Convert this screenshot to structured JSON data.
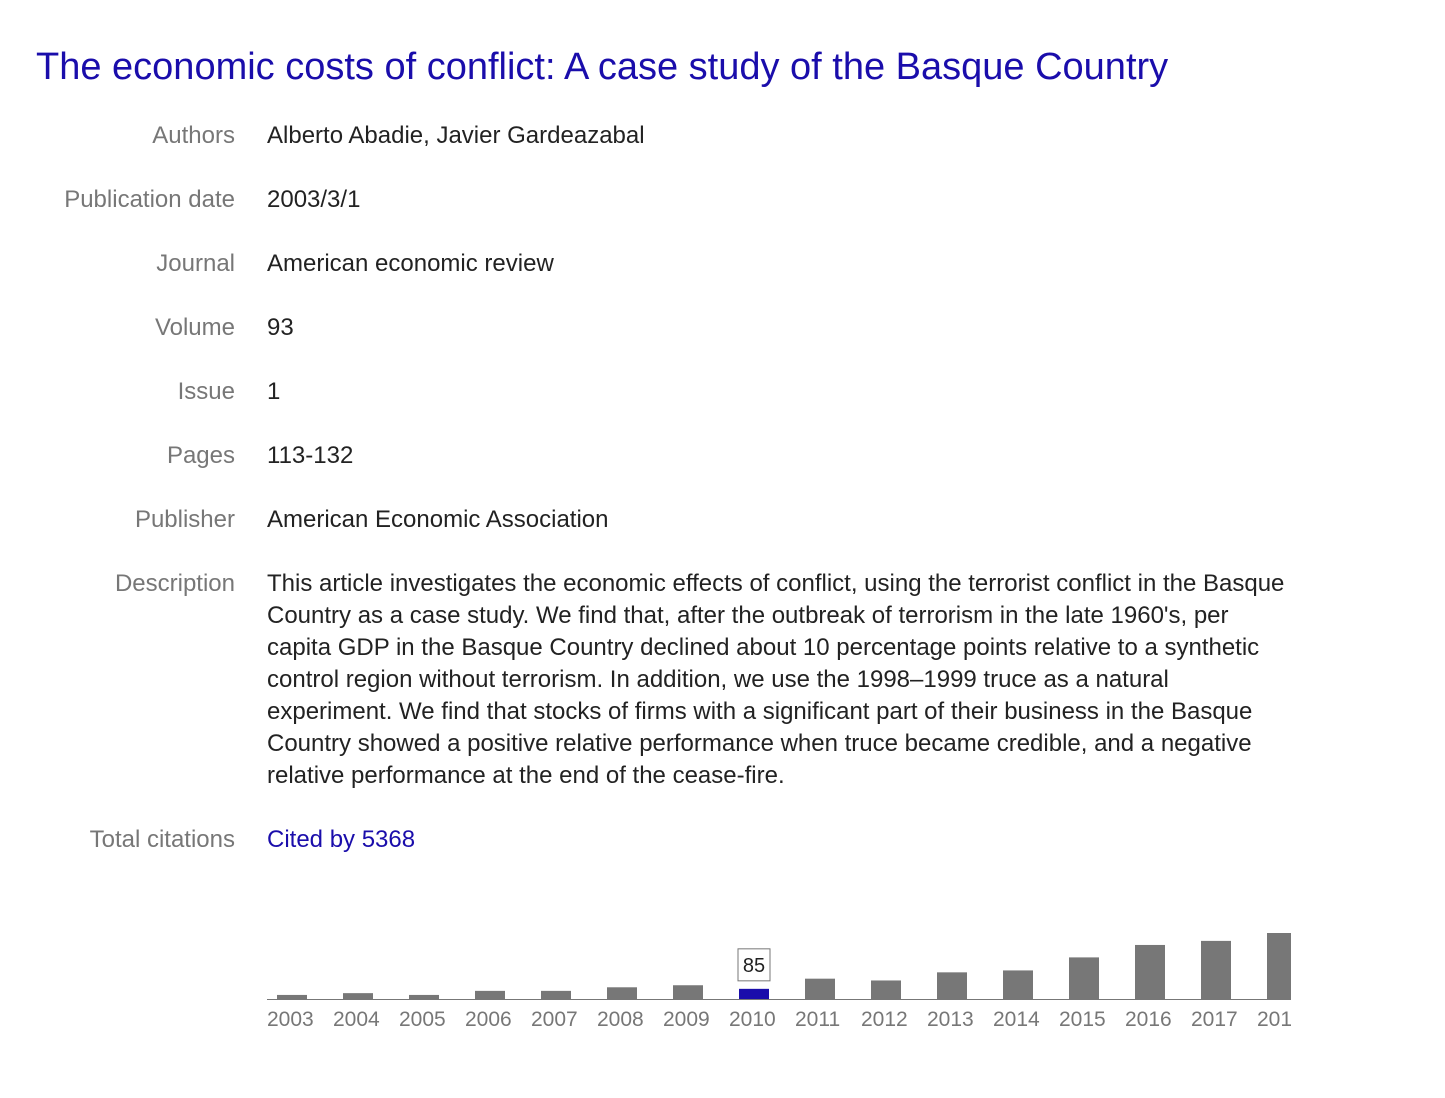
{
  "title": "The economic costs of conflict: A case study of the Basque Country",
  "fields": {
    "authors": {
      "label": "Authors",
      "value": "Alberto Abadie, Javier Gardeazabal"
    },
    "publication_date": {
      "label": "Publication date",
      "value": "2003/3/1"
    },
    "journal": {
      "label": "Journal",
      "value": "American economic review"
    },
    "volume": {
      "label": "Volume",
      "value": "93"
    },
    "issue": {
      "label": "Issue",
      "value": "1"
    },
    "pages": {
      "label": "Pages",
      "value": "113-132"
    },
    "publisher": {
      "label": "Publisher",
      "value": "American Economic Association"
    },
    "description": {
      "label": "Description",
      "value": "This article investigates the economic effects of conflict, using the terrorist conflict in the Basque Country as a case study. We find that, after the outbreak of terrorism in the late 1960's, per capita GDP in the Basque Country declined about 10 percentage points relative to a synthetic control region without terrorism. In addition, we use the 1998–1999 truce as a natural experiment. We find that stocks of firms with a significant part of their business in the Basque Country showed a positive relative performance when truce became credible, and a negative relative performance at the end of the cease-fire."
    },
    "total_citations": {
      "label": "Total citations",
      "value": "Cited by 5368"
    }
  },
  "colors": {
    "link": "#1a0dab",
    "bar": "#777777",
    "bar_highlight": "#1a0dab",
    "label": "#777777",
    "text": "#222222"
  },
  "chart_data": {
    "type": "bar",
    "categories": [
      "2003",
      "2004",
      "2005",
      "2006",
      "2007",
      "2008",
      "2009",
      "2010",
      "2011",
      "2012",
      "2013",
      "2014",
      "2015",
      "2016",
      "2017",
      "201"
    ],
    "values": [
      34,
      49,
      34,
      68,
      68,
      98,
      115,
      85,
      170,
      155,
      223,
      239,
      348,
      452,
      486,
      552
    ],
    "highlighted_index": 7,
    "tooltip": "85"
  }
}
